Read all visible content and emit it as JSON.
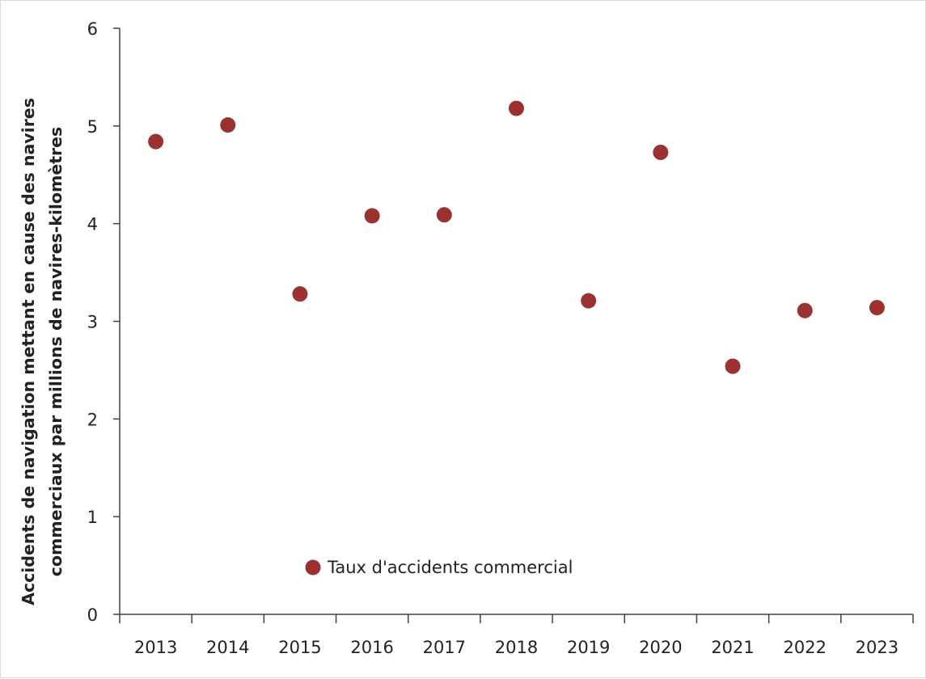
{
  "chart_data": {
    "type": "scatter",
    "categories": [
      "2013",
      "2014",
      "2015",
      "2016",
      "2017",
      "2018",
      "2019",
      "2020",
      "2021",
      "2022",
      "2023"
    ],
    "series": [
      {
        "name": "Taux d'accidents commercial",
        "values": [
          4.84,
          5.01,
          3.28,
          4.08,
          4.09,
          5.18,
          3.21,
          4.73,
          2.54,
          3.11,
          3.14
        ],
        "color": "#9b3131"
      }
    ],
    "ylabel_line1": "Accidents de navigation mettant en cause des navires",
    "ylabel_line2": "commerciaux par millions de navires-kilomètres",
    "ylim": [
      0,
      6
    ],
    "yticks": [
      0,
      1,
      2,
      3,
      4,
      5,
      6
    ],
    "grid": false,
    "legend_position": "bottom-left",
    "legend_label": "Taux d'accidents commercial"
  }
}
